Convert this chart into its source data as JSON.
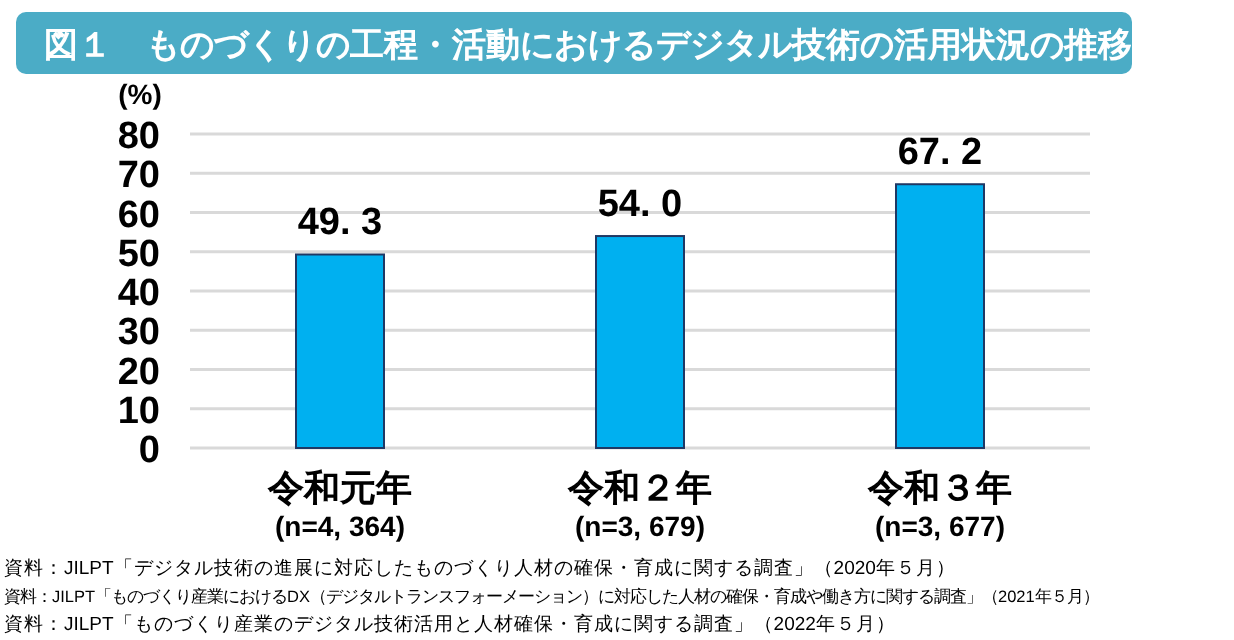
{
  "chart_data": {
    "type": "bar",
    "title": "図１　ものづくりの工程・活動におけるデジタル技術の活用状況の推移",
    "ylabel": "(%)",
    "categories": [
      "令和元年\n(n=4, 364)",
      "令和２年\n(n=3, 679)",
      "令和３年\n(n=3, 677)"
    ],
    "values": [
      49.3,
      54.0,
      67.2
    ],
    "value_labels": [
      "49. 3",
      "54. 0",
      "67. 2"
    ],
    "color": "#00b0f0",
    "ylim": [
      0,
      80
    ],
    "yticks": [
      0,
      10,
      20,
      30,
      40,
      50,
      60,
      70,
      80
    ],
    "grid": "y",
    "annotations": [
      "資料：JILPT「デジタル技術の進展に対応したものづくり人材の確保・育成に関する調査」（2020年５月）",
      "資料：JILPT「ものづくり産業におけるDX（デジタルトランスフォーメーション）に対応した人材の確保・育成や働き方に関する調査」（2021年５月）",
      "資料：JILPT「ものづくり産業のデジタル技術活用と人材確保・育成に関する調査」（2022年５月）"
    ]
  }
}
